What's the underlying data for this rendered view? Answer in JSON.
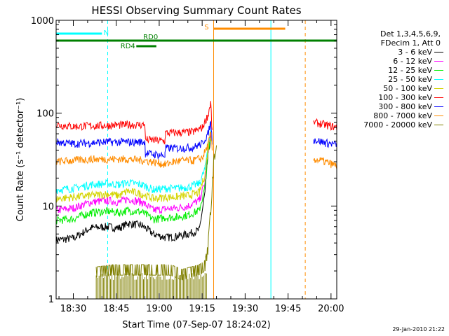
{
  "chart_data": {
    "type": "line",
    "title": "HESSI Observing Summary Count Rates",
    "xlabel": "Start Time (07-Sep-07 18:24:02)",
    "ylabel": "Count Rate (s⁻¹ detector⁻¹)",
    "yscale": "log",
    "ylim": [
      1,
      1000
    ],
    "xlim_minutes_after_1824": [
      0,
      98
    ],
    "x_ticks": [
      "18:30",
      "18:45",
      "19:00",
      "19:15",
      "19:30",
      "19:45",
      "20:00"
    ],
    "y_ticks": [
      "1",
      "10",
      "100",
      "1000"
    ],
    "legend_header": [
      "Det 1,3,4,5,6,9,",
      "FDecim 1, Att 0"
    ],
    "grid": false,
    "legend_position": "right",
    "series": [
      {
        "name": "3 - 6 keV",
        "color": "#000000",
        "values": [
          [
            0,
            4.3
          ],
          [
            6,
            4.5
          ],
          [
            12,
            5.8
          ],
          [
            18,
            6.0
          ],
          [
            22,
            5.8
          ],
          [
            25,
            6.5
          ],
          [
            30,
            6.2
          ],
          [
            34,
            5.0
          ],
          [
            38,
            4.6
          ],
          [
            42,
            4.7
          ],
          [
            46,
            5.0
          ],
          [
            50,
            5.5
          ],
          [
            52,
            14
          ],
          [
            53,
            35
          ],
          [
            54,
            55
          ]
        ]
      },
      {
        "name": "6 - 12 keV",
        "color": "#ff00ff",
        "values": [
          [
            0,
            9.0
          ],
          [
            6,
            9.5
          ],
          [
            12,
            11
          ],
          [
            18,
            11.5
          ],
          [
            22,
            11
          ],
          [
            25,
            12
          ],
          [
            30,
            11
          ],
          [
            34,
            9.0
          ],
          [
            38,
            9.3
          ],
          [
            42,
            9.5
          ],
          [
            46,
            10
          ],
          [
            50,
            11.5
          ],
          [
            52,
            18
          ],
          [
            53,
            38
          ],
          [
            54,
            60
          ]
        ]
      },
      {
        "name": "12 - 25 keV",
        "color": "#00ee00",
        "values": [
          [
            0,
            7.0
          ],
          [
            6,
            7.3
          ],
          [
            12,
            8.5
          ],
          [
            18,
            8.8
          ],
          [
            22,
            8.5
          ],
          [
            25,
            9.0
          ],
          [
            30,
            8.6
          ],
          [
            34,
            7.2
          ],
          [
            38,
            7.5
          ],
          [
            42,
            7.6
          ],
          [
            46,
            8.0
          ],
          [
            50,
            9.0
          ],
          [
            52,
            16
          ],
          [
            53,
            35
          ],
          [
            54,
            55
          ]
        ]
      },
      {
        "name": "25 - 50 keV",
        "color": "#00ffff",
        "values": [
          [
            0,
            15
          ],
          [
            6,
            15.5
          ],
          [
            12,
            17
          ],
          [
            18,
            17.5
          ],
          [
            22,
            17
          ],
          [
            25,
            18
          ],
          [
            30,
            17
          ],
          [
            34,
            15
          ],
          [
            38,
            15.5
          ],
          [
            42,
            15.5
          ],
          [
            46,
            16
          ],
          [
            50,
            17.5
          ],
          [
            52,
            25
          ],
          [
            53,
            45
          ],
          [
            54,
            65
          ]
        ]
      },
      {
        "name": "50 - 100 keV",
        "color": "#d4d400",
        "values": [
          [
            0,
            12
          ],
          [
            6,
            12.5
          ],
          [
            12,
            13
          ],
          [
            18,
            13.5
          ],
          [
            22,
            13
          ],
          [
            25,
            14.5
          ],
          [
            30,
            13.5
          ],
          [
            34,
            12
          ],
          [
            38,
            12.5
          ],
          [
            42,
            12.5
          ],
          [
            46,
            13
          ],
          [
            50,
            14
          ],
          [
            52,
            22
          ],
          [
            53,
            40
          ],
          [
            54,
            60
          ]
        ]
      },
      {
        "name": "100 - 300 keV",
        "color": "#ff0000",
        "values": [
          [
            0,
            75
          ],
          [
            6,
            72
          ],
          [
            12,
            73
          ],
          [
            18,
            74
          ],
          [
            25,
            75
          ],
          [
            31,
            75
          ],
          [
            31.2,
            52
          ],
          [
            38,
            50
          ],
          [
            38.2,
            61
          ],
          [
            44,
            62
          ],
          [
            48,
            63
          ],
          [
            51,
            70
          ],
          [
            53,
            95
          ],
          [
            54,
            130
          ],
          [
            54.5,
            60
          ],
          [
            90,
            80
          ],
          [
            94,
            75
          ],
          [
            98,
            70
          ]
        ]
      },
      {
        "name": "300 - 800 keV",
        "color": "#0000ff",
        "values": [
          [
            0,
            49
          ],
          [
            6,
            47
          ],
          [
            12,
            48
          ],
          [
            18,
            49
          ],
          [
            25,
            49
          ],
          [
            31,
            49
          ],
          [
            31.2,
            37
          ],
          [
            38,
            35
          ],
          [
            38.2,
            42
          ],
          [
            44,
            42
          ],
          [
            48,
            43
          ],
          [
            51,
            47
          ],
          [
            53,
            60
          ],
          [
            54,
            80
          ],
          [
            54.5,
            50
          ],
          [
            90,
            52
          ],
          [
            94,
            48
          ],
          [
            98,
            46
          ]
        ]
      },
      {
        "name": "800 - 7000 keV",
        "color": "#ff8c00",
        "values": [
          [
            0,
            30
          ],
          [
            6,
            31
          ],
          [
            12,
            32
          ],
          [
            18,
            32
          ],
          [
            25,
            32
          ],
          [
            31,
            31
          ],
          [
            36,
            29
          ],
          [
            38,
            28
          ],
          [
            41,
            30
          ],
          [
            44,
            31
          ],
          [
            48,
            31
          ],
          [
            51,
            33
          ],
          [
            53,
            45
          ],
          [
            54,
            60
          ],
          [
            54.5,
            40
          ],
          [
            90,
            32
          ],
          [
            94,
            30
          ],
          [
            98,
            27
          ]
        ]
      },
      {
        "name": "7000 - 20000 keV",
        "color": "#808000",
        "values": [
          [
            14,
            1.7
          ],
          [
            20,
            1.8
          ],
          [
            26,
            1.8
          ],
          [
            32,
            1.8
          ],
          [
            38,
            1.8
          ],
          [
            40,
            1.8
          ],
          [
            44,
            1.6
          ],
          [
            50,
            1.8
          ],
          [
            52,
            2.0
          ],
          [
            53,
            3.0
          ],
          [
            54,
            8
          ],
          [
            55,
            25
          ],
          [
            56,
            45
          ]
        ]
      }
    ],
    "annotations": [
      {
        "label": "N",
        "color": "#00ffff",
        "segments": [
          [
            0,
            16
          ]
        ]
      },
      {
        "label": "RD0",
        "color": "#008000",
        "segments": [
          [
            0,
            98
          ]
        ]
      },
      {
        "label": "RD4",
        "color": "#008000",
        "segments": [
          [
            28,
            35
          ]
        ]
      },
      {
        "label": "S",
        "color": "#ff8c00",
        "segments": [
          [
            55,
            80
          ]
        ]
      }
    ],
    "vertical_lines": [
      {
        "x": 0,
        "color": "#00ffff",
        "style": "solid"
      },
      {
        "x": 18,
        "color": "#00ffff",
        "style": "dashed"
      },
      {
        "x": 55,
        "color": "#ff8c00",
        "style": "solid"
      },
      {
        "x": 75,
        "color": "#00ffff",
        "style": "solid"
      },
      {
        "x": 87,
        "color": "#ff8c00",
        "style": "dashed"
      },
      {
        "x": 98,
        "color": "#00ffff",
        "style": "dashed"
      }
    ]
  },
  "footer_date": "29-Jan-2010 21:22"
}
